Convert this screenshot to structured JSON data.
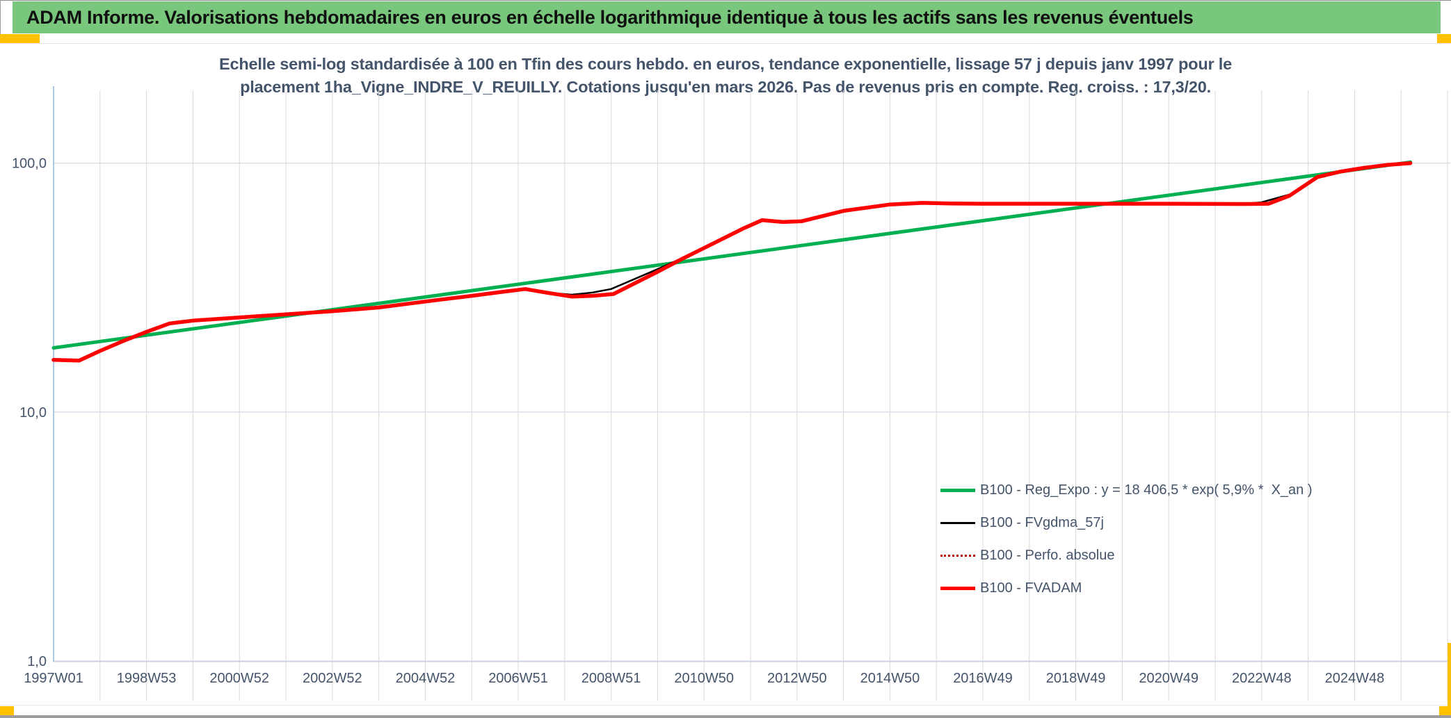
{
  "header": {
    "title": "ADAM Informe. Valorisations hebdomadaires en euros en échelle logarithmique identique à tous les actifs sans les revenus éventuels"
  },
  "subtitle": {
    "line1": "Echelle semi-log standardisée à 100 en Tfin des cours hebdo. en euros, tendance exponentielle, lissage 57 j depuis janv 1997 pour le",
    "line2": "placement 1ha_Vigne_INDRE_V_REUILLY. Cotations jusqu'en mars 2026. Pas de revenus pris en compte. Reg. croiss. : 17,3/20."
  },
  "colors": {
    "header_bg": "#79C67D",
    "accent_orange": "#FFC000",
    "text_navy": "#44546A",
    "green_line": "#00B050",
    "red_line": "#FF0000",
    "dark_red_dotted": "#C00000",
    "black_line": "#000000",
    "gridline": "#D9D9D9",
    "hgrid": "#D6DCE4",
    "axis_blue": "#9BB7E0"
  },
  "chart_data": {
    "type": "line",
    "y_scale": "log",
    "xlim": [
      1997,
      2027.06
    ],
    "ylim": [
      1,
      196
    ],
    "grid_years": {
      "start": 1997,
      "end": 2027
    },
    "yticks": [
      {
        "pos": 1,
        "label": "1,0"
      },
      {
        "pos": 10,
        "label": "10,0"
      },
      {
        "pos": 100,
        "label": "100,0"
      }
    ],
    "xticks": [
      {
        "pos": 1997,
        "label": "1997W01"
      },
      {
        "pos": 1999,
        "label": "1998W53"
      },
      {
        "pos": 2001,
        "label": "2000W52"
      },
      {
        "pos": 2003,
        "label": "2002W52"
      },
      {
        "pos": 2005,
        "label": "2004W52"
      },
      {
        "pos": 2007,
        "label": "2006W51"
      },
      {
        "pos": 2009,
        "label": "2008W51"
      },
      {
        "pos": 2011,
        "label": "2010W50"
      },
      {
        "pos": 2013,
        "label": "2012W50"
      },
      {
        "pos": 2015,
        "label": "2014W50"
      },
      {
        "pos": 2017,
        "label": "2016W49"
      },
      {
        "pos": 2019,
        "label": "2018W49"
      },
      {
        "pos": 2021,
        "label": "2020W49"
      },
      {
        "pos": 2023,
        "label": "2022W48"
      },
      {
        "pos": 2025,
        "label": "2024W48"
      }
    ],
    "legend": [
      {
        "label": "B100 - Reg_Expo : y = 18 406,5 * exp( 5,9% *  X_an )",
        "color": "#00B050",
        "style": "thick"
      },
      {
        "label": "B100 - FVgdma_57j",
        "color": "#000000",
        "style": "thin"
      },
      {
        "label": "B100 - Perfo. absolue",
        "color": "#C00000",
        "style": "dotted"
      },
      {
        "label": "B100 - FVADAM",
        "color": "#FF0000",
        "style": "thick"
      }
    ],
    "series": [
      {
        "key": "reg_expo",
        "name": "B100 - Reg_Expo",
        "color": "#00B050",
        "width": 5,
        "dash": "",
        "points": [
          [
            1997.0,
            18.1
          ],
          [
            2026.2,
            100.9
          ]
        ]
      },
      {
        "key": "fvgdma_57j",
        "name": "B100 - FVgdma_57j",
        "color": "#000000",
        "width": 2.5,
        "dash": "",
        "points": [
          [
            1997.0,
            16.2
          ],
          [
            1997.55,
            16.1
          ],
          [
            1998.0,
            17.6
          ],
          [
            1998.5,
            19.3
          ],
          [
            1999.0,
            21.0
          ],
          [
            1999.5,
            22.7
          ],
          [
            2000.0,
            23.3
          ],
          [
            2001.0,
            24.0
          ],
          [
            2002.0,
            24.7
          ],
          [
            2003.0,
            25.4
          ],
          [
            2004.0,
            26.3
          ],
          [
            2005.0,
            27.8
          ],
          [
            2006.0,
            29.3
          ],
          [
            2006.6,
            30.3
          ],
          [
            2007.15,
            31.2
          ],
          [
            2007.6,
            30.2
          ],
          [
            2008.15,
            29.6
          ],
          [
            2008.6,
            30.2
          ],
          [
            2009.0,
            31.2
          ],
          [
            2010.0,
            37.5
          ],
          [
            2010.5,
            41.3
          ],
          [
            2011.0,
            45.8
          ],
          [
            2011.85,
            54.7
          ],
          [
            2012.25,
            59.0
          ],
          [
            2012.7,
            58.0
          ],
          [
            2013.1,
            58.4
          ],
          [
            2014.0,
            64.3
          ],
          [
            2015.0,
            68.2
          ],
          [
            2015.7,
            69.2
          ],
          [
            2016.3,
            68.8
          ],
          [
            2017.0,
            68.7
          ],
          [
            2019.0,
            68.7
          ],
          [
            2021.0,
            68.7
          ],
          [
            2022.7,
            68.8
          ],
          [
            2023.0,
            69.6
          ],
          [
            2023.6,
            74.8
          ],
          [
            2024.2,
            87.9
          ],
          [
            2024.7,
            92.5
          ],
          [
            2025.2,
            95.7
          ],
          [
            2025.7,
            98.3
          ],
          [
            2026.2,
            100.0
          ]
        ]
      },
      {
        "key": "perfo_absolue",
        "name": "B100 - Perfo. absolue",
        "color": "#C00000",
        "width": 2,
        "dash": "1.5,3.5",
        "points": [
          [
            1997.0,
            16.2
          ],
          [
            1997.55,
            16.1
          ],
          [
            1998.0,
            17.6
          ],
          [
            1998.5,
            19.3
          ],
          [
            1999.0,
            21.0
          ],
          [
            1999.5,
            22.7
          ],
          [
            2000.0,
            23.3
          ],
          [
            2001.0,
            24.0
          ],
          [
            2002.0,
            24.7
          ],
          [
            2003.0,
            25.4
          ],
          [
            2004.0,
            26.3
          ],
          [
            2005.0,
            27.8
          ],
          [
            2006.0,
            29.3
          ],
          [
            2006.6,
            30.3
          ],
          [
            2007.15,
            31.2
          ],
          [
            2007.6,
            30.2
          ],
          [
            2008.15,
            29.1
          ],
          [
            2008.6,
            29.3
          ],
          [
            2009.05,
            29.8
          ],
          [
            2010.0,
            36.6
          ],
          [
            2010.5,
            41.0
          ],
          [
            2011.0,
            45.6
          ],
          [
            2011.85,
            54.7
          ],
          [
            2012.25,
            59.0
          ],
          [
            2012.7,
            58.0
          ],
          [
            2013.1,
            58.4
          ],
          [
            2014.0,
            64.3
          ],
          [
            2015.0,
            68.2
          ],
          [
            2015.7,
            69.2
          ],
          [
            2016.3,
            68.8
          ],
          [
            2017.0,
            68.7
          ],
          [
            2019.0,
            68.7
          ],
          [
            2021.0,
            68.7
          ],
          [
            2022.7,
            68.5
          ],
          [
            2023.15,
            68.7
          ],
          [
            2023.6,
            74.0
          ],
          [
            2024.2,
            87.9
          ],
          [
            2024.7,
            92.5
          ],
          [
            2025.2,
            95.7
          ],
          [
            2025.7,
            98.3
          ],
          [
            2026.2,
            100.0
          ]
        ]
      },
      {
        "key": "fvadam",
        "name": "B100 - FVADAM",
        "color": "#FF0000",
        "width": 5.5,
        "dash": "",
        "points": [
          [
            1997.0,
            16.2
          ],
          [
            1997.55,
            16.1
          ],
          [
            1998.0,
            17.6
          ],
          [
            1998.5,
            19.3
          ],
          [
            1999.0,
            21.0
          ],
          [
            1999.5,
            22.7
          ],
          [
            2000.0,
            23.3
          ],
          [
            2001.0,
            24.0
          ],
          [
            2002.0,
            24.7
          ],
          [
            2003.0,
            25.4
          ],
          [
            2004.0,
            26.3
          ],
          [
            2005.0,
            27.8
          ],
          [
            2006.0,
            29.3
          ],
          [
            2006.6,
            30.3
          ],
          [
            2007.15,
            31.2
          ],
          [
            2007.6,
            30.2
          ],
          [
            2008.15,
            29.1
          ],
          [
            2008.6,
            29.3
          ],
          [
            2009.05,
            29.8
          ],
          [
            2010.0,
            36.6
          ],
          [
            2010.5,
            41.0
          ],
          [
            2011.0,
            45.6
          ],
          [
            2011.85,
            54.7
          ],
          [
            2012.25,
            59.0
          ],
          [
            2012.7,
            58.0
          ],
          [
            2013.1,
            58.4
          ],
          [
            2014.0,
            64.3
          ],
          [
            2015.0,
            68.2
          ],
          [
            2015.7,
            69.2
          ],
          [
            2016.3,
            68.8
          ],
          [
            2017.0,
            68.7
          ],
          [
            2019.0,
            68.7
          ],
          [
            2021.0,
            68.7
          ],
          [
            2022.7,
            68.5
          ],
          [
            2023.15,
            68.7
          ],
          [
            2023.6,
            74.0
          ],
          [
            2024.2,
            87.9
          ],
          [
            2024.7,
            92.5
          ],
          [
            2025.2,
            95.7
          ],
          [
            2025.7,
            98.3
          ],
          [
            2026.2,
            100.0
          ]
        ]
      }
    ]
  }
}
